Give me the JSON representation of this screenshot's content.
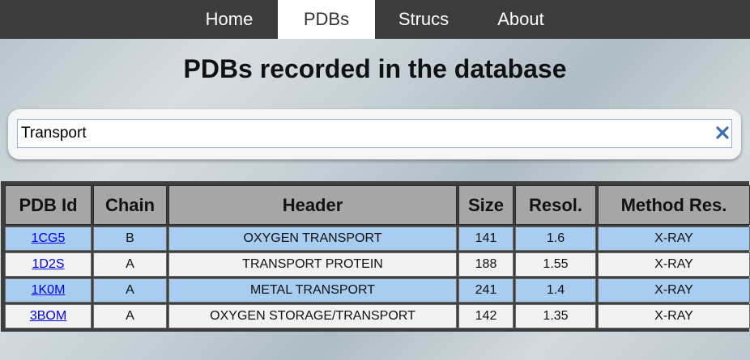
{
  "nav": {
    "items": [
      {
        "label": "Home"
      },
      {
        "label": "PDBs",
        "active": true
      },
      {
        "label": "Strucs"
      },
      {
        "label": "About"
      }
    ]
  },
  "page": {
    "title": "PDBs recorded in the database"
  },
  "search": {
    "value": "Transport",
    "clear_icon": "close-x-icon",
    "clear_color": "#3b6fb0"
  },
  "table": {
    "headers": [
      "PDB Id",
      "Chain",
      "Header",
      "Size",
      "Resol.",
      "Method Res."
    ],
    "rows": [
      {
        "pdb_id": "1CG5",
        "chain": "B",
        "header": "OXYGEN TRANSPORT",
        "size": "141",
        "resol": "1.6",
        "method": "X-RAY"
      },
      {
        "pdb_id": "1D2S",
        "chain": "A",
        "header": "TRANSPORT PROTEIN",
        "size": "188",
        "resol": "1.55",
        "method": "X-RAY"
      },
      {
        "pdb_id": "1K0M",
        "chain": "A",
        "header": "METAL TRANSPORT",
        "size": "241",
        "resol": "1.4",
        "method": "X-RAY"
      },
      {
        "pdb_id": "3BOM",
        "chain": "A",
        "header": "OXYGEN STORAGE/TRANSPORT",
        "size": "142",
        "resol": "1.35",
        "method": "X-RAY"
      }
    ]
  },
  "colors": {
    "nav_bg": "#3c3c3c",
    "row_highlight": "#a9cdf0",
    "row_plain": "#f2f2f2",
    "header_bg": "#a6a6a6",
    "link": "#0000ee"
  }
}
